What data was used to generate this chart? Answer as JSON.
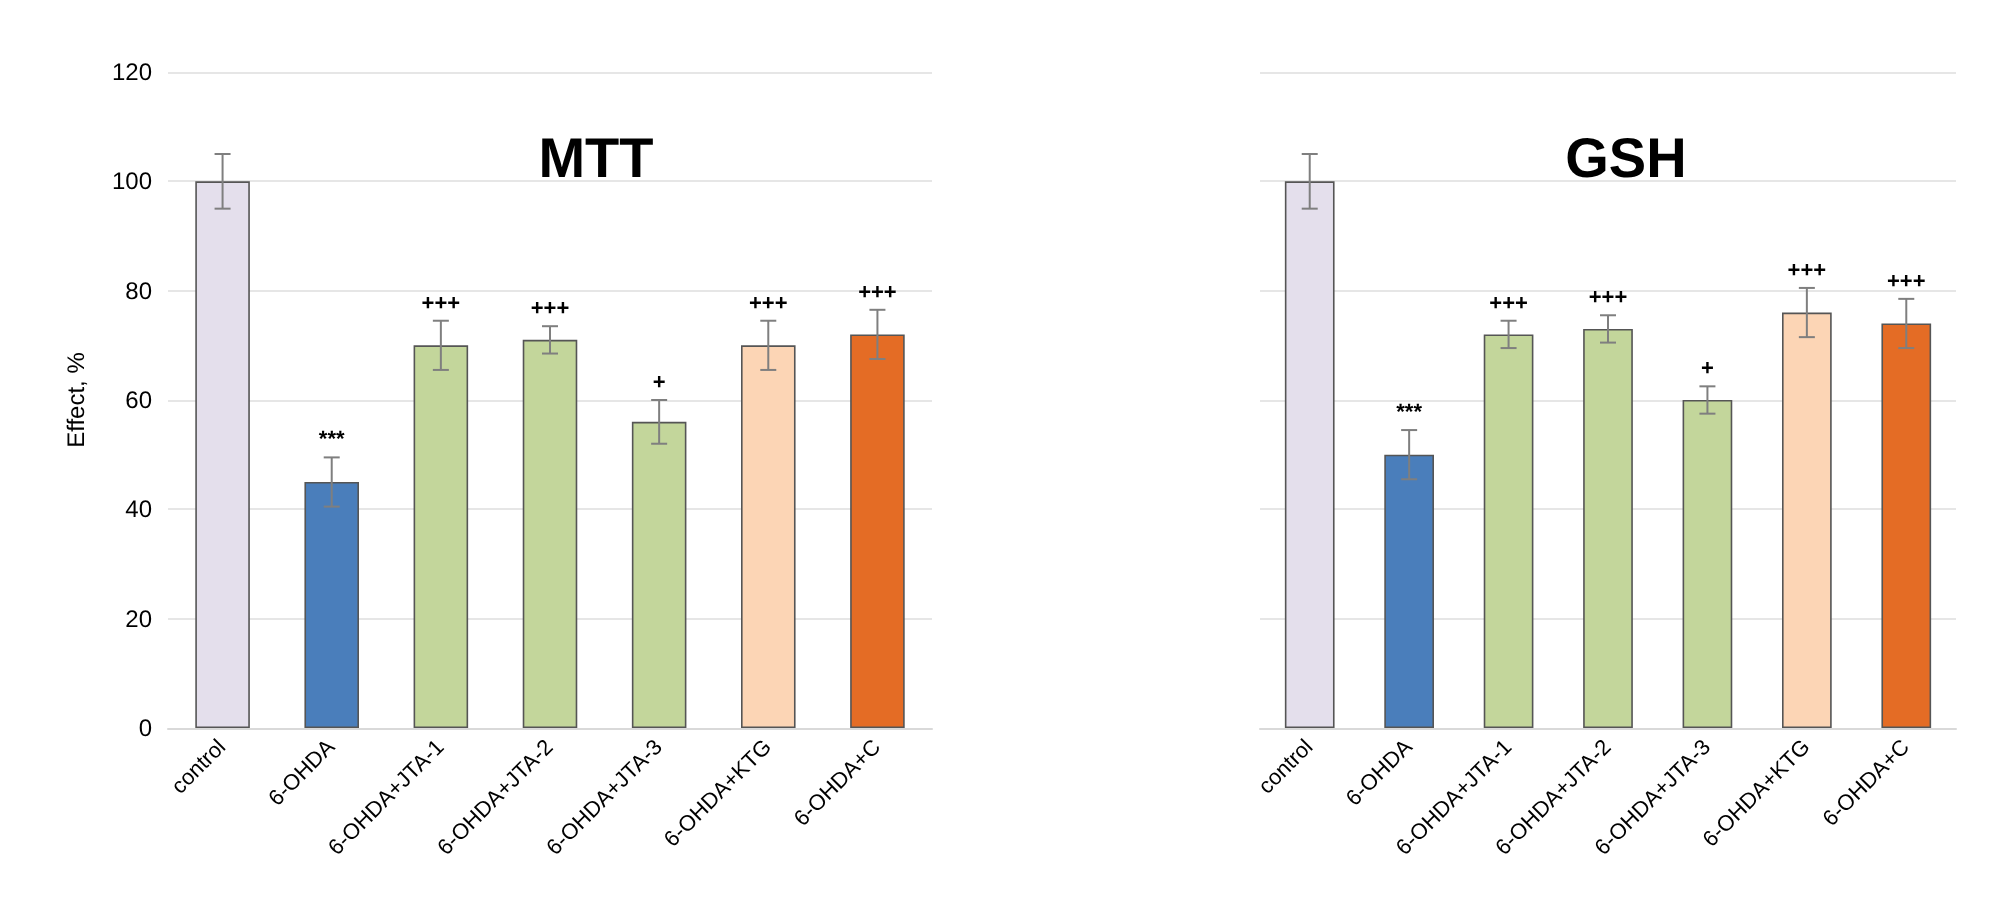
{
  "chart_data": [
    {
      "type": "bar",
      "title": "MTT",
      "ylabel": "Effect, %",
      "categories": [
        "control",
        "6-OHDA",
        "6-OHDA+JTA-1",
        "6-OHDA+JTA-2",
        "6-OHDA+JTA-3",
        "6-OHDA+KTG",
        "6-OHDA+C"
      ],
      "values": [
        100,
        45,
        70,
        71,
        56,
        70,
        72
      ],
      "errors": [
        5,
        4.5,
        4.5,
        2.5,
        4,
        4.5,
        4.5
      ],
      "colors": [
        "#e4dfec",
        "#4a7ebb",
        "#c3d69b",
        "#c3d69b",
        "#c3d69b",
        "#fcd5b5",
        "#e46c25"
      ],
      "ylim": [
        0,
        120
      ],
      "yticks": [
        0,
        20,
        40,
        60,
        80,
        100,
        120
      ],
      "grid": "y",
      "value_labels": [
        null,
        "***",
        "+++",
        "+++",
        "+",
        "+++",
        "+++"
      ]
    },
    {
      "type": "bar",
      "title": "GSH",
      "categories": [
        "control",
        "6-OHDA",
        "6-OHDA+JTA-1",
        "6-OHDA+JTA-2",
        "6-OHDA+JTA-3",
        "6-OHDA+KTG",
        "6-OHDA+C"
      ],
      "values": [
        100,
        50,
        72,
        73,
        60,
        76,
        74
      ],
      "errors": [
        5,
        4.5,
        2.5,
        2.5,
        2.5,
        4.5,
        4.5
      ],
      "colors": [
        "#e4dfec",
        "#4a7ebb",
        "#c3d69b",
        "#c3d69b",
        "#c3d69b",
        "#fcd5b5",
        "#e46c25"
      ],
      "ylim": [
        0,
        120
      ],
      "yticks": [
        0,
        20,
        40,
        60,
        80,
        100,
        120
      ],
      "grid": "y",
      "tick_labels": "x",
      "value_labels": [
        null,
        "***",
        "+++",
        "+++",
        "+",
        "+++",
        "+++"
      ]
    }
  ]
}
